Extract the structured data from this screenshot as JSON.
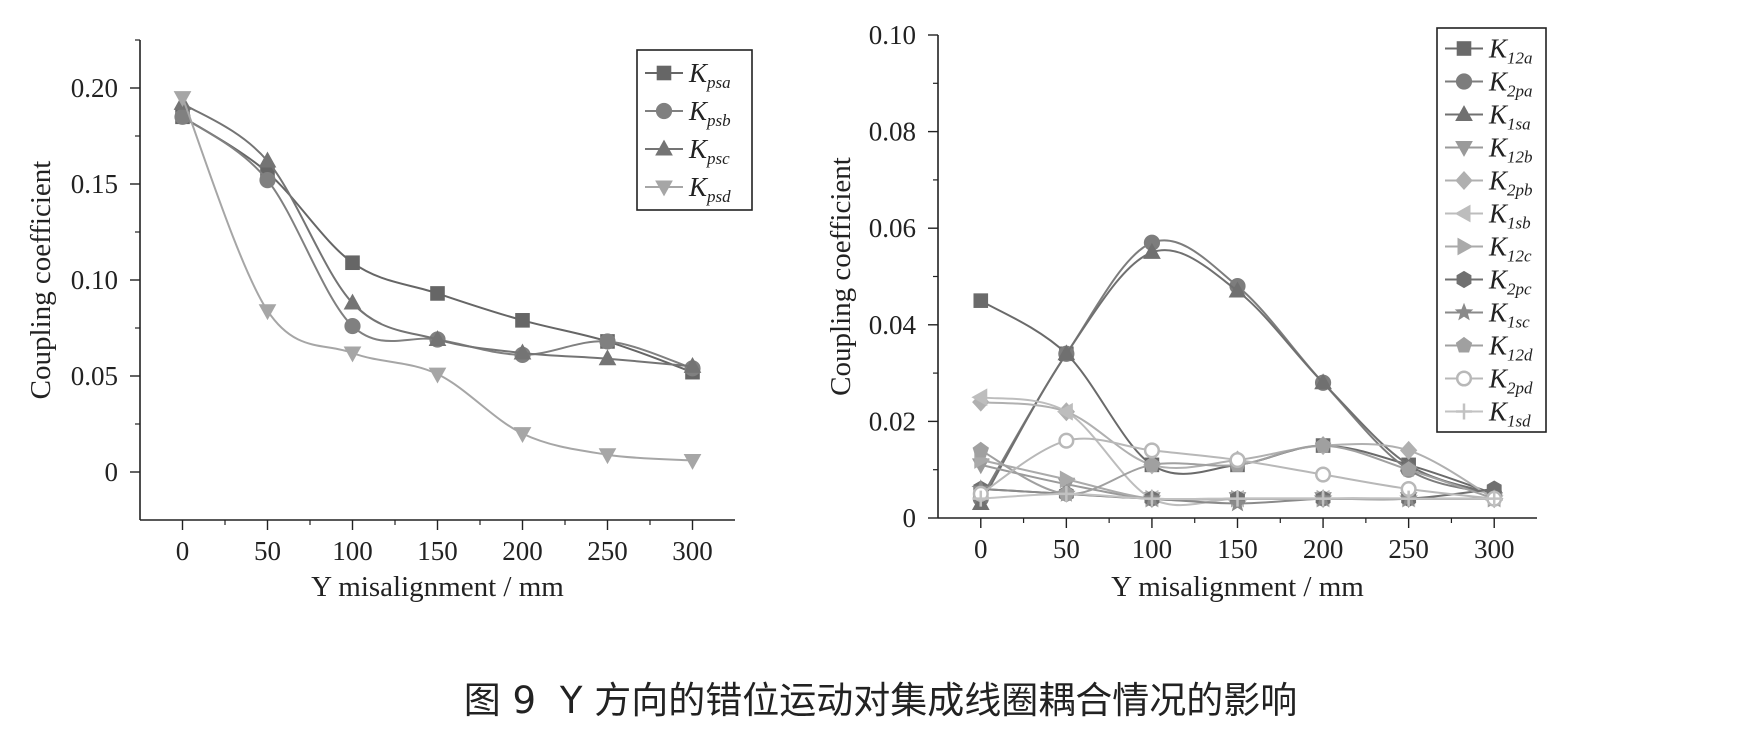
{
  "caption": {
    "figure_no": "图 9",
    "text": "Y 方向的错位运动对集成线圈耦合情况的影响"
  },
  "chart_data": [
    {
      "type": "line",
      "xlabel": "Y misalignment / mm",
      "ylabel": "Coupling coefficient",
      "xlim": [
        -25,
        325
      ],
      "ylim": [
        -0.025,
        0.225
      ],
      "xticks": [
        "0",
        "50",
        "100",
        "150",
        "200",
        "250",
        "300"
      ],
      "yticks": [
        "0",
        "0.05",
        "0.10",
        "0.15",
        "0.20"
      ],
      "x": [
        0,
        50,
        100,
        150,
        200,
        250,
        300
      ],
      "legend_position": "top-right",
      "series": [
        {
          "name": "K",
          "sub": "psa",
          "marker": "square",
          "color": "#666666",
          "values": [
            0.185,
            0.156,
            0.109,
            0.093,
            0.079,
            0.068,
            0.052
          ]
        },
        {
          "name": "K",
          "sub": "psb",
          "marker": "circle",
          "color": "#808080",
          "values": [
            0.185,
            0.152,
            0.076,
            0.069,
            0.061,
            0.068,
            0.054
          ]
        },
        {
          "name": "K",
          "sub": "psc",
          "marker": "triangle-up",
          "color": "#747474",
          "values": [
            0.192,
            0.162,
            0.088,
            0.069,
            0.062,
            0.059,
            0.055
          ]
        },
        {
          "name": "K",
          "sub": "psd",
          "marker": "triangle-down",
          "color": "#a6a6a6",
          "values": [
            0.195,
            0.084,
            0.062,
            0.051,
            0.02,
            0.009,
            0.006
          ]
        }
      ]
    },
    {
      "type": "line",
      "xlabel": "Y misalignment / mm",
      "ylabel": "Coupling coefficient",
      "xlim": [
        -25,
        325
      ],
      "ylim": [
        0,
        0.1
      ],
      "xticks": [
        "0",
        "50",
        "100",
        "150",
        "200",
        "250",
        "300"
      ],
      "yticks": [
        "0",
        "0.02",
        "0.04",
        "0.06",
        "0.08",
        "0.10"
      ],
      "x": [
        0,
        50,
        100,
        150,
        200,
        250,
        300
      ],
      "legend_position": "top-right",
      "series": [
        {
          "name": "K",
          "sub": "12a",
          "marker": "square",
          "color": "#6a6a6a",
          "values": [
            0.045,
            0.034,
            0.011,
            0.011,
            0.015,
            0.011,
            0.005
          ]
        },
        {
          "name": "K",
          "sub": "2pa",
          "marker": "circle",
          "color": "#7d7d7d",
          "values": [
            0.004,
            0.034,
            0.057,
            0.048,
            0.028,
            0.01,
            0.005
          ]
        },
        {
          "name": "K",
          "sub": "1sa",
          "marker": "triangle-up",
          "color": "#707070",
          "values": [
            0.003,
            0.034,
            0.055,
            0.047,
            0.028,
            0.011,
            0.005
          ]
        },
        {
          "name": "K",
          "sub": "12b",
          "marker": "triangle-down",
          "color": "#9a9a9a",
          "values": [
            0.011,
            0.007,
            0.004,
            0.004,
            0.004,
            0.004,
            0.004
          ]
        },
        {
          "name": "K",
          "sub": "2pb",
          "marker": "diamond",
          "color": "#b0b0b0",
          "values": [
            0.024,
            0.022,
            0.011,
            0.012,
            0.015,
            0.014,
            0.004
          ]
        },
        {
          "name": "K",
          "sub": "1sb",
          "marker": "triangle-left",
          "color": "#bdbdbd",
          "values": [
            0.025,
            0.022,
            0.004,
            0.004,
            0.004,
            0.004,
            0.004
          ]
        },
        {
          "name": "K",
          "sub": "12c",
          "marker": "triangle-right",
          "color": "#aaaaaa",
          "values": [
            0.012,
            0.008,
            0.004,
            0.004,
            0.004,
            0.004,
            0.004
          ]
        },
        {
          "name": "K",
          "sub": "2pc",
          "marker": "hexagon",
          "color": "#707070",
          "values": [
            0.006,
            0.005,
            0.004,
            0.004,
            0.004,
            0.004,
            0.006
          ]
        },
        {
          "name": "K",
          "sub": "1sc",
          "marker": "star",
          "color": "#8a8a8a",
          "values": [
            0.006,
            0.005,
            0.004,
            0.003,
            0.004,
            0.004,
            0.004
          ]
        },
        {
          "name": "K",
          "sub": "12d",
          "marker": "pentagon",
          "color": "#a0a0a0",
          "values": [
            0.014,
            0.005,
            0.011,
            0.011,
            0.015,
            0.01,
            0.004
          ]
        },
        {
          "name": "K",
          "sub": "2pd",
          "marker": "circle-open",
          "color": "#b8b8b8",
          "values": [
            0.005,
            0.016,
            0.014,
            0.012,
            0.009,
            0.006,
            0.004
          ]
        },
        {
          "name": "K",
          "sub": "1sd",
          "marker": "plus",
          "color": "#c2c2c2",
          "values": [
            0.004,
            0.005,
            0.004,
            0.004,
            0.004,
            0.004,
            0.004
          ]
        }
      ]
    }
  ]
}
